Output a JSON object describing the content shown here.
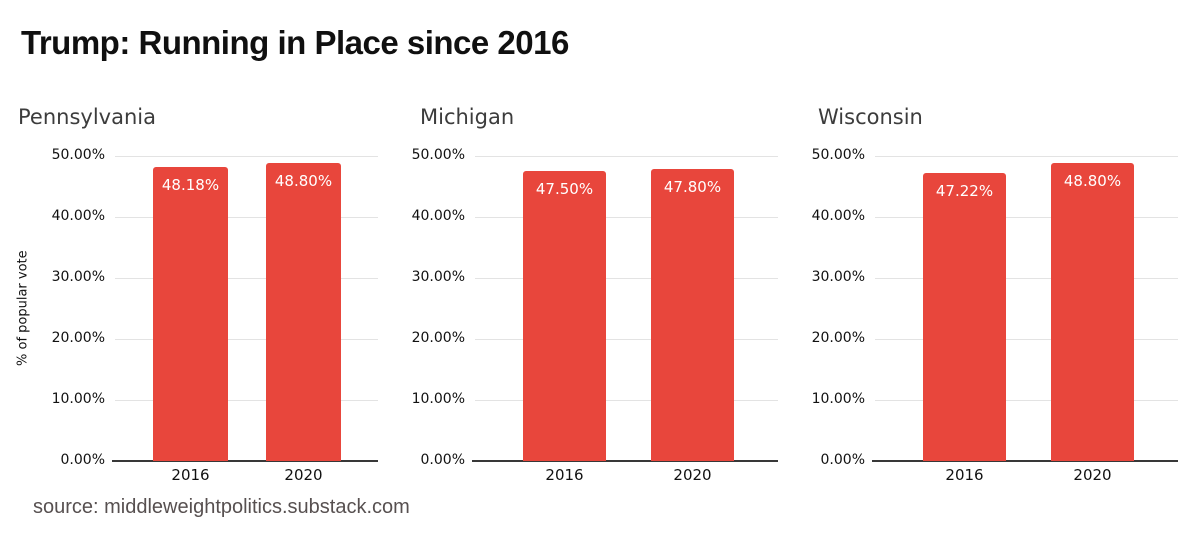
{
  "page": {
    "title": "Trump: Running in Place since 2016",
    "source_caption": "source: middleweightpolitics.substack.com"
  },
  "colors": {
    "bar": "#E8463C",
    "gridline": "#e3e3e3",
    "axis_baseline": "#383838",
    "bar_label_text": "#ffffff"
  },
  "axis": {
    "y_label": "% of popular vote",
    "y_ticks": [
      "50.00%",
      "40.00%",
      "30.00%",
      "20.00%",
      "10.00%",
      "0.00%"
    ],
    "ylim": [
      0,
      50
    ]
  },
  "chart_data": [
    {
      "type": "bar",
      "title": "Pennsylvania",
      "categories": [
        "2016",
        "2020"
      ],
      "values": [
        48.18,
        48.8
      ],
      "value_labels": [
        "48.18%",
        "48.80%"
      ],
      "xlabel": "",
      "ylabel": "% of popular vote",
      "ylim": [
        0,
        50
      ],
      "ytick_step": 10,
      "grid": true,
      "legend": "none"
    },
    {
      "type": "bar",
      "title": "Michigan",
      "categories": [
        "2016",
        "2020"
      ],
      "values": [
        47.5,
        47.8
      ],
      "value_labels": [
        "47.50%",
        "47.80%"
      ],
      "xlabel": "",
      "ylabel": "",
      "ylim": [
        0,
        50
      ],
      "ytick_step": 10,
      "grid": true,
      "legend": "none"
    },
    {
      "type": "bar",
      "title": "Wisconsin",
      "categories": [
        "2016",
        "2020"
      ],
      "values": [
        47.22,
        48.8
      ],
      "value_labels": [
        "47.22%",
        "48.80%"
      ],
      "xlabel": "",
      "ylabel": "",
      "ylim": [
        0,
        50
      ],
      "ytick_step": 10,
      "grid": true,
      "legend": "none"
    }
  ]
}
